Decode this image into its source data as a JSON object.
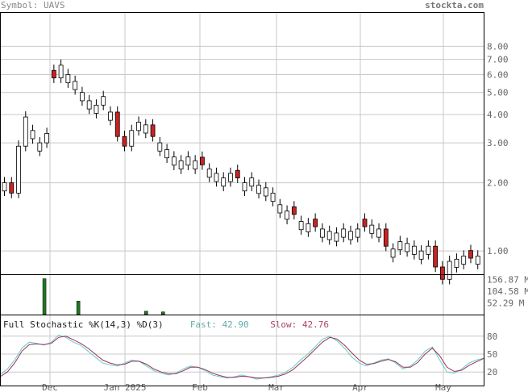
{
  "header": {
    "symbol": "Symbol: UAVS",
    "site": "stockta.com"
  },
  "stochastic": {
    "title": "Full Stochastic %K(14,3) %D(3)",
    "fast_label": "Fast:",
    "fast_value": "42.90",
    "slow_label": "Slow:",
    "slow_value": "42.76"
  },
  "colors": {
    "up": "#ffffff",
    "down": "#cc2222",
    "volume": "#227722",
    "fast": "#66cccc",
    "slow": "#993355",
    "grid": "#c8c8c8"
  },
  "chart_data": [
    {
      "type": "candlestick",
      "y_scale": "log",
      "ylim": [
        0.4,
        9
      ],
      "y_ticks": [
        "8.00",
        "7.00",
        "6.00",
        "5.00",
        "4.00",
        "3.00",
        "2.00",
        "1.00"
      ],
      "x_ticks": [
        "Dec",
        "Jan 2025",
        "Feb",
        "Mar",
        "Apr",
        "May"
      ],
      "closes": [
        2.0,
        1.8,
        2.9,
        3.9,
        3.4,
        3.0,
        3.3,
        5.8,
        6.6,
        6.0,
        5.6,
        5.0,
        4.6,
        4.4,
        4.8,
        4.1,
        3.2,
        2.9,
        3.4,
        3.7,
        3.6,
        3.2,
        3.0,
        2.8,
        2.6,
        2.5,
        2.6,
        2.5,
        2.4,
        2.3,
        2.2,
        2.1,
        2.2,
        2.1,
        2.0,
        2.1,
        1.95,
        1.9,
        1.8,
        1.6,
        1.5,
        1.45,
        1.35,
        1.32,
        1.28,
        1.25,
        1.22,
        1.2,
        1.25,
        1.22,
        1.25,
        1.28,
        1.3,
        1.25,
        1.05,
        1.02,
        1.1,
        1.08,
        1.05,
        1.0,
        1.05,
        0.85,
        0.75,
        0.9,
        0.92,
        0.95,
        0.93,
        0.95
      ],
      "down_days": [
        1,
        7,
        16,
        17,
        21,
        28,
        33,
        41,
        44,
        51,
        54,
        61,
        62,
        66
      ]
    },
    {
      "type": "bar",
      "name": "volume",
      "y_ticks": [
        "156.87 M",
        "104.58 M",
        "52.29 M"
      ],
      "ylim": [
        0,
        180
      ],
      "values": [
        0,
        0,
        0,
        0,
        0,
        0,
        0,
        0,
        0,
        0,
        0,
        0,
        0,
        0,
        0,
        0,
        0,
        0,
        0,
        0,
        0,
        0,
        0,
        0,
        0,
        0,
        0,
        0,
        0,
        0,
        0,
        0,
        0,
        0,
        0,
        0,
        0,
        0,
        0,
        0,
        0,
        0,
        0,
        0,
        0,
        0,
        0,
        0,
        0,
        0,
        0,
        0,
        0,
        0,
        0,
        0,
        0,
        0,
        0,
        0,
        0,
        0,
        0,
        0,
        0,
        0,
        0,
        0
      ],
      "spikes": [
        [
          2,
          160
        ],
        [
          4,
          60
        ],
        [
          8,
          15
        ],
        [
          9,
          12
        ]
      ]
    },
    {
      "type": "line",
      "y_ticks": [
        "80",
        "50",
        "20"
      ],
      "ylim": [
        0,
        100
      ],
      "fast": [
        15,
        25,
        40,
        60,
        70,
        68,
        65,
        70,
        82,
        78,
        70,
        65,
        55,
        45,
        35,
        32,
        30,
        35,
        40,
        38,
        30,
        22,
        18,
        15,
        18,
        25,
        30,
        28,
        22,
        15,
        12,
        10,
        12,
        15,
        12,
        8,
        10,
        12,
        15,
        20,
        28,
        40,
        50,
        62,
        75,
        80,
        72,
        60,
        45,
        35,
        30,
        35,
        40,
        42,
        35,
        25,
        30,
        40,
        55,
        62,
        40,
        20,
        18,
        25,
        35,
        40,
        43
      ],
      "slow": [
        12,
        20,
        35,
        55,
        66,
        67,
        66,
        68,
        78,
        80,
        74,
        68,
        60,
        50,
        40,
        35,
        32,
        33,
        38,
        38,
        33,
        25,
        20,
        17,
        17,
        22,
        28,
        28,
        24,
        18,
        14,
        11,
        11,
        13,
        12,
        10,
        10,
        11,
        13,
        17,
        24,
        35,
        46,
        58,
        70,
        78,
        75,
        65,
        52,
        40,
        33,
        34,
        38,
        41,
        37,
        28,
        28,
        36,
        50,
        60,
        47,
        28,
        21,
        23,
        31,
        37,
        42.76
      ]
    }
  ]
}
